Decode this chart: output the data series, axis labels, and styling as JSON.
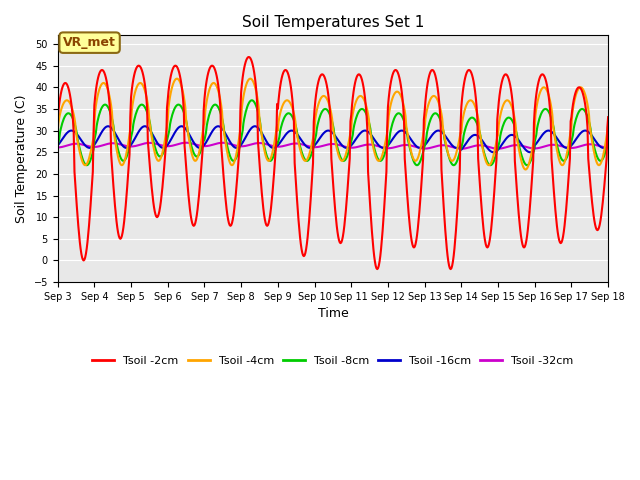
{
  "title": "Soil Temperatures Set 1",
  "xlabel": "Time",
  "ylabel": "Soil Temperature (C)",
  "ylim": [
    -5,
    52
  ],
  "yticks": [
    -5,
    0,
    5,
    10,
    15,
    20,
    25,
    30,
    35,
    40,
    45,
    50
  ],
  "xlim_days": [
    3.0,
    18.0
  ],
  "xtick_days": [
    3,
    4,
    5,
    6,
    7,
    8,
    9,
    10,
    11,
    12,
    13,
    14,
    15,
    16,
    17,
    18
  ],
  "xtick_labels": [
    "Sep 3",
    "Sep 4",
    "Sep 5",
    "Sep 6",
    "Sep 7",
    "Sep 8",
    "Sep 9",
    "Sep 10",
    "Sep 11",
    "Sep 12",
    "Sep 13",
    "Sep 14",
    "Sep 15",
    "Sep 16",
    "Sep 17",
    "Sep 18"
  ],
  "annotation_text": "VR_met",
  "colors": {
    "tsoil_2cm": "#FF0000",
    "tsoil_4cm": "#FFA500",
    "tsoil_8cm": "#00CC00",
    "tsoil_16cm": "#0000CC",
    "tsoil_32cm": "#CC00CC"
  },
  "legend_labels": [
    "Tsoil -2cm",
    "Tsoil -4cm",
    "Tsoil -8cm",
    "Tsoil -16cm",
    "Tsoil -32cm"
  ],
  "background_color": "#E8E8E8",
  "figure_color": "#FFFFFF",
  "grid_color": "#FFFFFF",
  "linewidth": 1.5
}
